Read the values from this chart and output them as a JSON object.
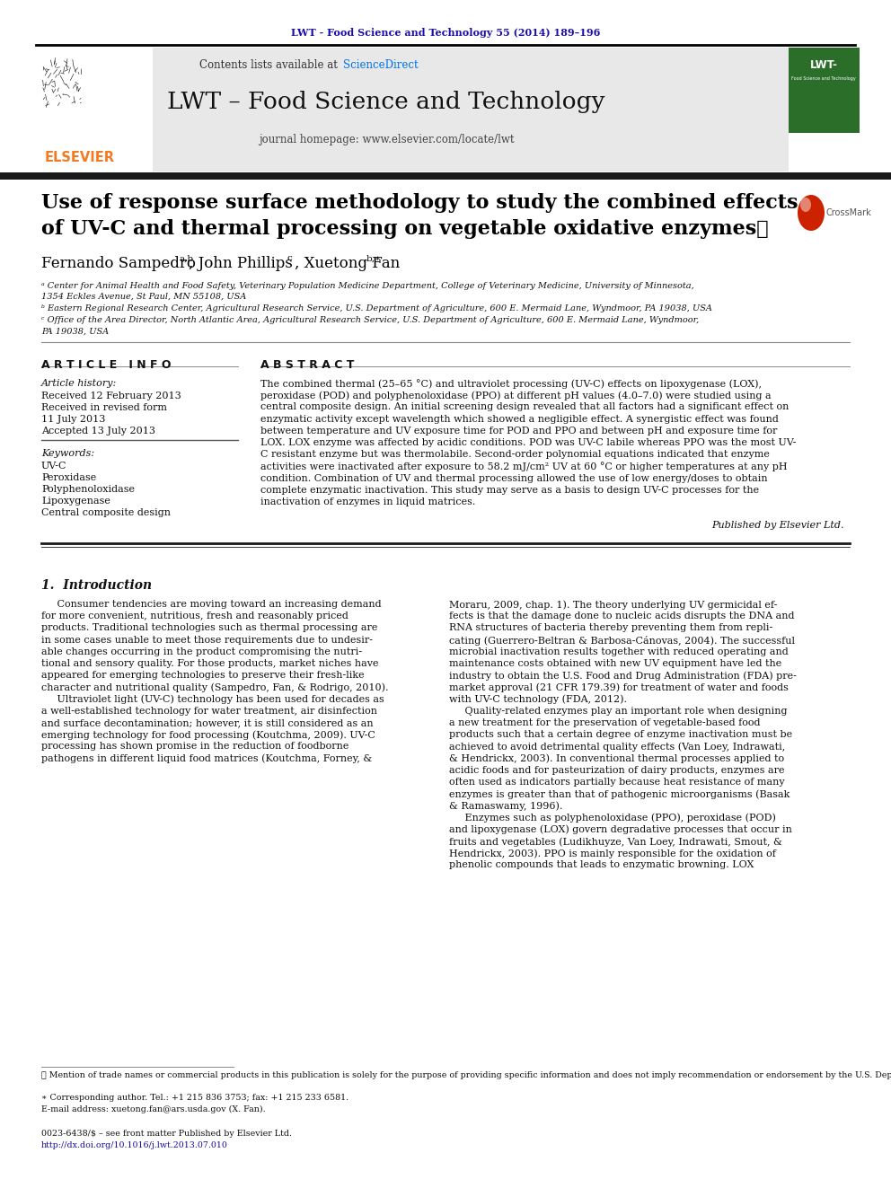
{
  "journal_ref": "LWT - Food Science and Technology 55 (2014) 189–196",
  "journal_ref_color": "#1a0dab",
  "header_bg": "#e8e8e8",
  "header_journal": "LWT – Food Science and Technology",
  "header_homepage": "journal homepage: www.elsevier.com/locate/lwt",
  "header_contents": "Contents lists available at ",
  "header_sciencedirect": "ScienceDirect",
  "sciencedirect_color": "#0073e6",
  "article_title_line1": "Use of response surface methodology to study the combined effects",
  "article_title_line2": "of UV-C and thermal processing on vegetable oxidative enzymes",
  "article_title_star": "★",
  "author1": "Fernando Sampedro",
  "author1_sup": "a,b",
  "author2": ", John Phillips",
  "author2_sup": "c",
  "author3": ", Xuetong Fan",
  "author3_sup": "b,∗",
  "affil_a": "ᵃ Center for Animal Health and Food Safety, Veterinary Population Medicine Department, College of Veterinary Medicine, University of Minnesota,",
  "affil_a2": "1354 Eckles Avenue, St Paul, MN 55108, USA",
  "affil_b": "ᵇ Eastern Regional Research Center, Agricultural Research Service, U.S. Department of Agriculture, 600 E. Mermaid Lane, Wyndmoor, PA 19038, USA",
  "affil_c": "ᶜ Office of the Area Director, North Atlantic Area, Agricultural Research Service, U.S. Department of Agriculture, 600 E. Mermaid Lane, Wyndmoor,",
  "affil_c2": "PA 19038, USA",
  "article_info_header": "A R T I C L E   I N F O",
  "abstract_header": "A B S T R A C T",
  "article_history_label": "Article history:",
  "received": "Received 12 February 2013",
  "revised": "Received in revised form",
  "revised2": "11 July 2013",
  "accepted": "Accepted 13 July 2013",
  "keywords_label": "Keywords:",
  "keyword1": "UV-C",
  "keyword2": "Peroxidase",
  "keyword3": "Polyphenoloxidase",
  "keyword4": "Lipoxygenase",
  "keyword5": "Central composite design",
  "abstract_lines": [
    "The combined thermal (25–65 °C) and ultraviolet processing (UV-C) effects on lipoxygenase (LOX),",
    "peroxidase (POD) and polyphenoloxidase (PPO) at different pH values (4.0–7.0) were studied using a",
    "central composite design. An initial screening design revealed that all factors had a significant effect on",
    "enzymatic activity except wavelength which showed a negligible effect. A synergistic effect was found",
    "between temperature and UV exposure time for POD and PPO and between pH and exposure time for",
    "LOX. LOX enzyme was affected by acidic conditions. POD was UV-C labile whereas PPO was the most UV-",
    "C resistant enzyme but was thermolabile. Second-order polynomial equations indicated that enzyme",
    "activities were inactivated after exposure to 58.2 mJ/cm² UV at 60 °C or higher temperatures at any pH",
    "condition. Combination of UV and thermal processing allowed the use of low energy/doses to obtain",
    "complete enzymatic inactivation. This study may serve as a basis to design UV-C processes for the",
    "inactivation of enzymes in liquid matrices."
  ],
  "published_by": "Published by Elsevier Ltd.",
  "intro_header": "1.  Introduction",
  "intro1_lines": [
    "     Consumer tendencies are moving toward an increasing demand",
    "for more convenient, nutritious, fresh and reasonably priced",
    "products. Traditional technologies such as thermal processing are",
    "in some cases unable to meet those requirements due to undesir-",
    "able changes occurring in the product compromising the nutri-",
    "tional and sensory quality. For those products, market niches have",
    "appeared for emerging technologies to preserve their fresh-like",
    "character and nutritional quality (Sampedro, Fan, & Rodrigo, 2010).",
    "     Ultraviolet light (UV-C) technology has been used for decades as",
    "a well-established technology for water treatment, air disinfection",
    "and surface decontamination; however, it is still considered as an",
    "emerging technology for food processing (Koutchma, 2009). UV-C",
    "processing has shown promise in the reduction of foodborne",
    "pathogens in different liquid food matrices (Koutchma, Forney, &"
  ],
  "intro2_lines": [
    "Moraru, 2009, chap. 1). The theory underlying UV germicidal ef-",
    "fects is that the damage done to nucleic acids disrupts the DNA and",
    "RNA structures of bacteria thereby preventing them from repli-",
    "cating (Guerrero-Beltran & Barbosa-Cánovas, 2004). The successful",
    "microbial inactivation results together with reduced operating and",
    "maintenance costs obtained with new UV equipment have led the",
    "industry to obtain the U.S. Food and Drug Administration (FDA) pre-",
    "market approval (21 CFR 179.39) for treatment of water and foods",
    "with UV-C technology (FDA, 2012).",
    "     Quality-related enzymes play an important role when designing",
    "a new treatment for the preservation of vegetable-based food",
    "products such that a certain degree of enzyme inactivation must be",
    "achieved to avoid detrimental quality effects (Van Loey, Indrawati,",
    "& Hendrickx, 2003). In conventional thermal processes applied to",
    "acidic foods and for pasteurization of dairy products, enzymes are",
    "often used as indicators partially because heat resistance of many",
    "enzymes is greater than that of pathogenic microorganisms (Basak",
    "& Ramaswamy, 1996).",
    "     Enzymes such as polyphenoloxidase (PPO), peroxidase (POD)",
    "and lipoxygenase (LOX) govern degradative processes that occur in",
    "fruits and vegetables (Ludikhuyze, Van Loey, Indrawati, Smout, &",
    "Hendrickx, 2003). PPO is mainly responsible for the oxidation of",
    "phenolic compounds that leads to enzymatic browning. LOX"
  ],
  "footnote_star_text": " Mention of trade names or commercial products in this publication is solely for the purpose of providing specific information and does not imply recommendation or endorsement by the U.S. Department of Agriculture. USDA is an equal opportunity employer and provider.",
  "footnote_corresp": "∗ Corresponding author. Tel.: +1 215 836 3753; fax: +1 215 233 6581.",
  "footnote_email": "E-mail address: xuetong.fan@ars.usda.gov (X. Fan).",
  "footer_issn": "0023-6438/$ – see front matter Published by Elsevier Ltd.",
  "footer_doi": "http://dx.doi.org/10.1016/j.lwt.2013.07.010",
  "elsevier_orange": "#f47920",
  "link_color2": "#1a0dab"
}
